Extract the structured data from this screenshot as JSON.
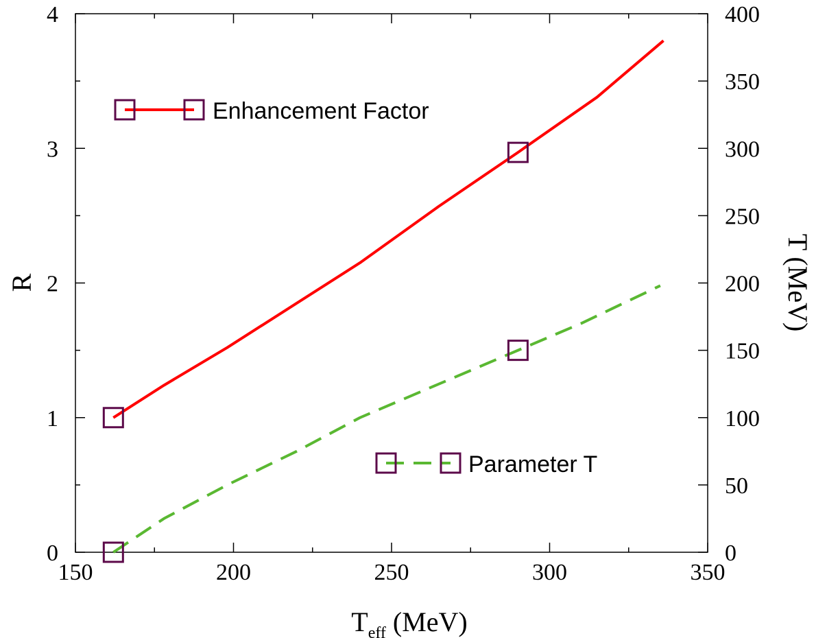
{
  "chart_data": {
    "type": "line",
    "xlabel": {
      "main": "T",
      "sub": "eff",
      "tail": " (MeV)"
    },
    "ylabel_left": "R",
    "ylabel_right": "T (MeV)",
    "xlim": [
      150,
      350
    ],
    "ylim_left": [
      0,
      4
    ],
    "ylim_right": [
      0,
      400
    ],
    "x_ticks": [
      150,
      200,
      250,
      300,
      350
    ],
    "y_left_ticks": [
      0,
      1,
      2,
      3,
      4
    ],
    "y_right_ticks": [
      0,
      50,
      100,
      150,
      200,
      250,
      300,
      350,
      400
    ],
    "grid": false,
    "series": [
      {
        "name": "Enhancement Factor",
        "axis": "left",
        "style": "solid",
        "color": "#ff0000",
        "x": [
          162,
          178,
          198,
          220,
          240,
          265,
          290,
          315,
          336
        ],
        "y": [
          1.0,
          1.24,
          1.52,
          1.85,
          2.15,
          2.57,
          2.97,
          3.38,
          3.8
        ]
      },
      {
        "name": "Parameter T",
        "axis": "right",
        "style": "dashed",
        "color": "#5ab832",
        "x": [
          162,
          178,
          198,
          220,
          240,
          265,
          290,
          310,
          335
        ],
        "y": [
          0,
          25,
          50,
          75,
          100,
          125,
          150,
          170,
          198
        ]
      }
    ],
    "markers": {
      "shape": "open-square",
      "color": "#5c0a4a",
      "points": [
        {
          "x": 162,
          "y_left": 1.0
        },
        {
          "x": 290,
          "y_left": 2.97
        },
        {
          "x": 162,
          "y_left": 0.0
        },
        {
          "x": 290,
          "y_left": 1.5
        }
      ]
    },
    "legend": [
      {
        "label": "Enhancement Factor",
        "placement": "upper-left",
        "series": 0
      },
      {
        "label": "Parameter T",
        "placement": "lower-right",
        "series": 1
      }
    ]
  }
}
